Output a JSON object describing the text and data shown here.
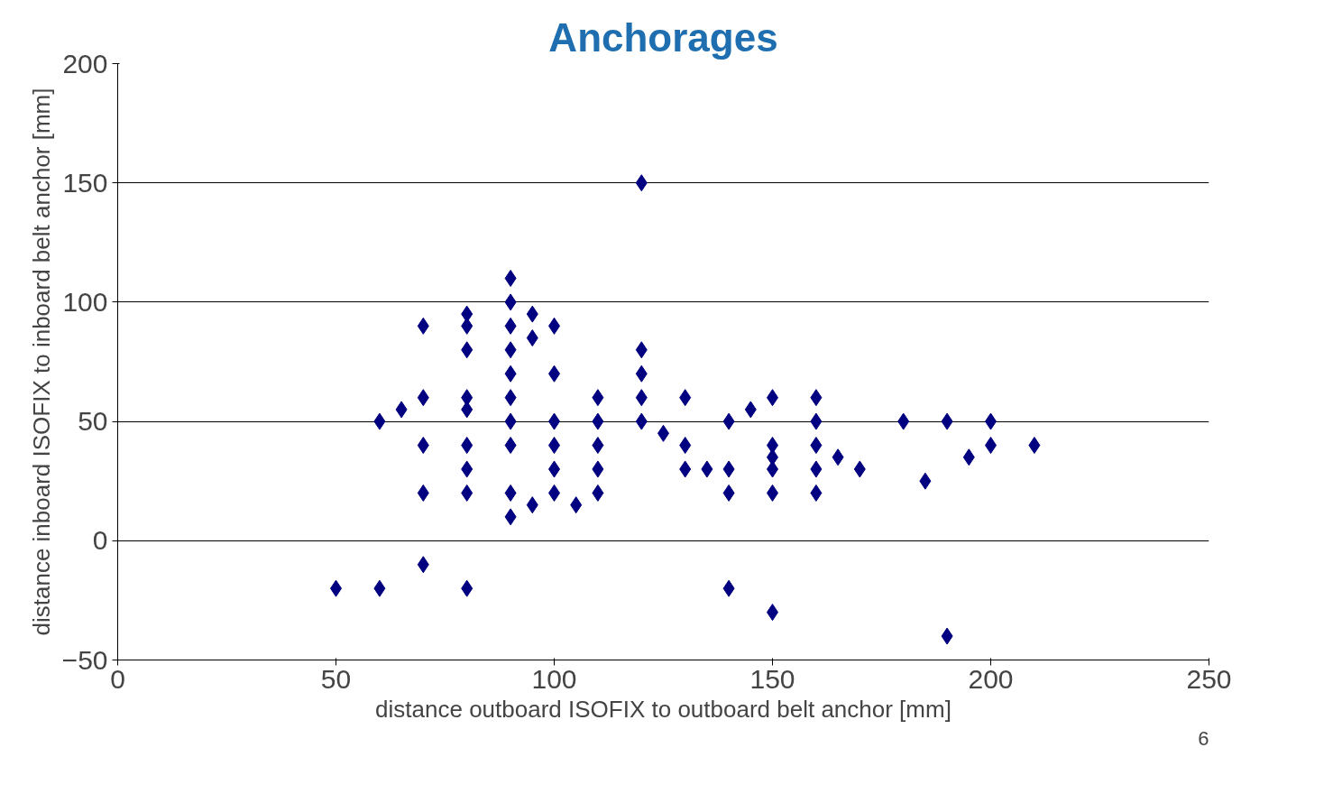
{
  "chart_data": {
    "type": "scatter",
    "title": "Anchorages",
    "xlabel": "distance outboard ISOFIX to outboard belt anchor [mm]",
    "ylabel": "distance inboard ISOFIX to inboard belt anchor [mm]",
    "annotations": [
      "6"
    ],
    "x": [
      50,
      60,
      60,
      65,
      70,
      70,
      70,
      70,
      70,
      80,
      80,
      80,
      80,
      80,
      80,
      80,
      80,
      80,
      90,
      90,
      90,
      90,
      90,
      90,
      90,
      90,
      90,
      90,
      95,
      95,
      95,
      100,
      100,
      100,
      100,
      100,
      100,
      105,
      110,
      110,
      110,
      110,
      110,
      120,
      120,
      120,
      120,
      120,
      125,
      130,
      130,
      130,
      135,
      140,
      140,
      140,
      140,
      145,
      150,
      150,
      150,
      150,
      150,
      150,
      160,
      160,
      160,
      160,
      160,
      165,
      170,
      180,
      185,
      190,
      190,
      195,
      200,
      200,
      210
    ],
    "values": [
      -20,
      -20,
      50,
      55,
      90,
      60,
      40,
      20,
      -10,
      95,
      90,
      80,
      60,
      55,
      40,
      30,
      20,
      -20,
      110,
      100,
      90,
      80,
      70,
      60,
      50,
      40,
      20,
      10,
      95,
      85,
      15,
      90,
      70,
      50,
      40,
      30,
      20,
      15,
      60,
      50,
      40,
      30,
      20,
      150,
      80,
      70,
      60,
      50,
      45,
      60,
      40,
      30,
      30,
      50,
      30,
      20,
      -20,
      55,
      60,
      40,
      35,
      30,
      20,
      -30,
      60,
      50,
      40,
      30,
      20,
      35,
      30,
      50,
      25,
      50,
      -40,
      35,
      50,
      40,
      40
    ],
    "color": "#000080",
    "marker": "diamond",
    "xlim": [
      0,
      250
    ],
    "ylim": [
      -50,
      200
    ],
    "xticks": [
      0,
      50,
      100,
      150,
      200,
      250
    ],
    "yticks": [
      -50,
      0,
      50,
      100,
      150,
      200
    ],
    "grid": "y"
  }
}
